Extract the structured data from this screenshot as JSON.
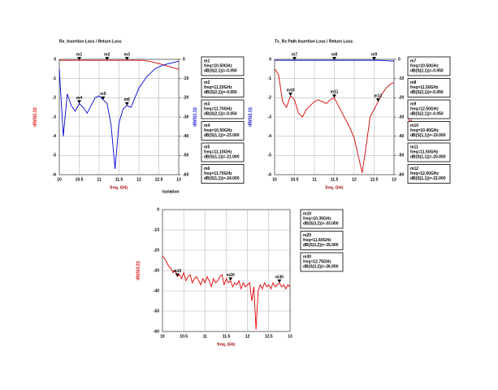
{
  "chart_data": [
    {
      "type": "line",
      "title": "Rx_Insertion Loss / Return Loss",
      "xlabel": "freq, GHz",
      "ylabel": "dB(S(2,1))",
      "y2label": "dB(S(1,1))",
      "x": [
        10,
        10.1,
        10.2,
        10.3,
        10.4,
        10.5,
        10.6,
        10.7,
        10.8,
        10.9,
        11,
        11.1,
        11.2,
        11.3,
        11.4,
        11.5,
        11.6,
        11.7,
        11.8,
        11.9,
        12,
        12.1,
        12.2,
        12.3,
        12.4,
        12.5,
        12.6,
        12.7,
        12.8,
        12.9,
        13
      ],
      "xlim": [
        10,
        13
      ],
      "xticks": [
        10,
        10.5,
        11,
        11.5,
        12,
        12.5,
        13
      ],
      "ylim": [
        -6,
        0
      ],
      "yticks": [
        0,
        -1,
        -2,
        -3,
        -4,
        -5,
        -6
      ],
      "y2lim": [
        -60,
        0
      ],
      "y2ticks": [
        0,
        -10,
        -20,
        -30,
        -40,
        -50,
        -60
      ],
      "grid": true,
      "series": [
        {
          "color": "#d40000",
          "axis": "y",
          "values": [
            -0.05,
            -0.05,
            -0.05,
            -0.05,
            -0.05,
            -0.05,
            -0.05,
            -0.05,
            -0.05,
            -0.05,
            -0.05,
            -0.05,
            -0.05,
            -0.05,
            -0.05,
            -0.05,
            -0.05,
            -0.05,
            -0.05,
            -0.05,
            -0.05,
            -0.05,
            -0.08,
            -0.12,
            -0.17,
            -0.22,
            -0.28,
            -0.34,
            -0.4,
            -0.46,
            -0.52
          ]
        },
        {
          "color": "#0000d0",
          "axis": "y2",
          "values": [
            -5,
            -40,
            -18,
            -24,
            -27,
            -23,
            -25,
            -28,
            -24,
            -20,
            -19,
            -21,
            -23,
            -34,
            -57,
            -33,
            -26,
            -24,
            -25,
            -20,
            -15,
            -12,
            -9,
            -7,
            -5,
            -4,
            -3,
            -2.5,
            -2,
            -1.5,
            -1
          ]
        }
      ],
      "markers": [
        {
          "name": "m1",
          "series": 0,
          "x": 10.5,
          "y": -0.05,
          "lines": [
            "freq=10.50GHz",
            "dB(S(2,1))=-0.050"
          ]
        },
        {
          "name": "m2",
          "series": 0,
          "x": 11.2,
          "y": -0.05,
          "lines": [
            "freq=11.20GHz",
            "dB(S(2,1))=-0.050"
          ]
        },
        {
          "name": "m3",
          "series": 0,
          "x": 11.7,
          "y": -0.05,
          "lines": [
            "freq=11.70GHz",
            "dB(S(2,1))=-0.050"
          ]
        },
        {
          "name": "m4",
          "series": 1,
          "x": 10.5,
          "y": -23,
          "lines": [
            "freq=10.50GHz",
            "dB(S(1,1))=-23.000"
          ]
        },
        {
          "name": "m5",
          "series": 1,
          "x": 11.1,
          "y": -21,
          "lines": [
            "freq=11.10GHz",
            "dB(S(1,1))=-21.000"
          ]
        },
        {
          "name": "m6",
          "series": 1,
          "x": 11.7,
          "y": -24,
          "lines": [
            "freq=11.70GHz",
            "dB(S(1,1))=-24.000"
          ]
        }
      ]
    },
    {
      "type": "line",
      "title": "Tx_Rx Path Insertion Loss / Return Loss",
      "xlabel": "freq, GHz",
      "ylabel": "dB(S(2,1))",
      "y2label": "dB(S(1,1))",
      "x": [
        10,
        10.1,
        10.2,
        10.3,
        10.4,
        10.5,
        10.6,
        10.7,
        10.8,
        10.9,
        11,
        11.1,
        11.2,
        11.3,
        11.4,
        11.5,
        11.6,
        11.7,
        11.8,
        11.9,
        12,
        12.1,
        12.2,
        12.3,
        12.4,
        12.5,
        12.6,
        12.7,
        12.8,
        12.9,
        13
      ],
      "xlim": [
        10,
        13
      ],
      "xticks": [
        10,
        10.5,
        11,
        11.5,
        12,
        12.5,
        13
      ],
      "ylim": [
        -6,
        0
      ],
      "yticks": [
        0,
        -1,
        -2,
        -3,
        -4,
        -5,
        -6
      ],
      "y2lim": [
        -60,
        0
      ],
      "y2ticks": [
        0,
        -10,
        -20,
        -30,
        -40,
        -50,
        -60
      ],
      "grid": true,
      "series": [
        {
          "color": "#0000d0",
          "axis": "y",
          "values": [
            -0.05,
            -0.05,
            -0.05,
            -0.05,
            -0.05,
            -0.05,
            -0.05,
            -0.05,
            -0.05,
            -0.05,
            -0.05,
            -0.05,
            -0.05,
            -0.05,
            -0.05,
            -0.05,
            -0.05,
            -0.05,
            -0.05,
            -0.05,
            -0.05,
            -0.05,
            -0.05,
            -0.05,
            -0.05,
            -0.05,
            -0.05,
            -0.06,
            -0.07,
            -0.08,
            -0.09
          ]
        },
        {
          "color": "#d40000",
          "axis": "y2",
          "values": [
            -5,
            -8,
            -22,
            -25,
            -19,
            -21,
            -28,
            -30,
            -26,
            -24,
            -22,
            -21,
            -22,
            -23,
            -21,
            -20,
            -24,
            -28,
            -32,
            -36,
            -41,
            -50,
            -59,
            -45,
            -30,
            -26,
            -22,
            -18,
            -15,
            -13,
            -12
          ]
        }
      ],
      "markers": [
        {
          "name": "m7",
          "series": 0,
          "x": 10.5,
          "y": -0.05,
          "lines": [
            "freq=10.50GHz",
            "dB(S(2,1))=-0.050"
          ]
        },
        {
          "name": "m8",
          "series": 0,
          "x": 11.5,
          "y": -0.05,
          "lines": [
            "freq=11.50GHz",
            "dB(S(2,1))=-0.050"
          ]
        },
        {
          "name": "m9",
          "series": 0,
          "x": 12.5,
          "y": -0.05,
          "lines": [
            "freq=12.50GHz",
            "dB(S(2,1))=-0.050"
          ]
        },
        {
          "name": "m10",
          "series": 1,
          "x": 10.4,
          "y": -19,
          "lines": [
            "freq=10.40GHz",
            "dB(S(1,1))=-19.000"
          ]
        },
        {
          "name": "m11",
          "series": 1,
          "x": 11.5,
          "y": -20,
          "lines": [
            "freq=11.50GHz",
            "dB(S(1,1))=-20.000"
          ]
        },
        {
          "name": "m12",
          "series": 1,
          "x": 12.6,
          "y": -22,
          "lines": [
            "freq=12.60GHz",
            "dB(S(1,1))=-22.000"
          ]
        }
      ]
    },
    {
      "type": "line",
      "title": "Isolation",
      "xlabel": "freq, GHz",
      "ylabel": "dB(S(3,2))",
      "x": [
        10,
        10.05,
        10.1,
        10.15,
        10.2,
        10.25,
        10.3,
        10.35,
        10.4,
        10.45,
        10.5,
        10.55,
        10.6,
        10.65,
        10.7,
        10.75,
        10.8,
        10.85,
        10.9,
        10.95,
        11,
        11.05,
        11.1,
        11.15,
        11.2,
        11.25,
        11.3,
        11.35,
        11.4,
        11.45,
        11.5,
        11.55,
        11.6,
        11.65,
        11.7,
        11.75,
        11.8,
        11.85,
        11.9,
        11.95,
        12,
        12.05,
        12.1,
        12.15,
        12.2,
        12.25,
        12.3,
        12.35,
        12.4,
        12.45,
        12.5,
        12.55,
        12.6,
        12.65,
        12.7,
        12.75,
        12.8,
        12.85,
        12.9,
        12.95,
        13
      ],
      "xlim": [
        10,
        13
      ],
      "xticks": [
        10,
        10.5,
        11,
        11.5,
        12,
        12.5,
        13
      ],
      "ylim": [
        -60,
        0
      ],
      "yticks": [
        0,
        -10,
        -20,
        -30,
        -40,
        -50,
        -60
      ],
      "grid": true,
      "series": [
        {
          "color": "#e00000",
          "axis": "y",
          "values": [
            -23,
            -24,
            -26,
            -28,
            -29,
            -31,
            -30,
            -33,
            -32,
            -34,
            -31,
            -35,
            -33,
            -32,
            -36,
            -34,
            -33,
            -35,
            -37,
            -34,
            -36,
            -33,
            -35,
            -38,
            -34,
            -36,
            -35,
            -33,
            -32,
            -37,
            -34,
            -36,
            -35,
            -38,
            -36,
            -37,
            -35,
            -39,
            -36,
            -38,
            -37,
            -36,
            -45,
            -38,
            -59,
            -40,
            -37,
            -39,
            -36,
            -38,
            -37,
            -39,
            -36,
            -38,
            -37,
            -36,
            -38,
            -37,
            -39,
            -37,
            -38
          ]
        }
      ],
      "markers": [
        {
          "name": "m10",
          "series": 0,
          "x": 10.35,
          "y": -33,
          "lines": [
            "freq=10.35GHz",
            "dB(S(3,2))=-33.000"
          ]
        },
        {
          "name": "m20",
          "series": 0,
          "x": 11.6,
          "y": -35,
          "lines": [
            "freq=11.60GHz",
            "dB(S(3,2))=-35.000"
          ]
        },
        {
          "name": "m30",
          "series": 0,
          "x": 12.75,
          "y": -36,
          "lines": [
            "freq=12.75GHz",
            "dB(S(3,2))=-36.000"
          ]
        }
      ]
    }
  ]
}
